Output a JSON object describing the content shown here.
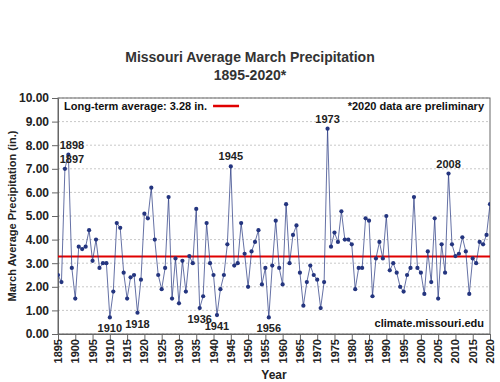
{
  "chart_data": {
    "type": "line",
    "title": "Missouri Average March Precipitation",
    "subtitle": "1895-2020*",
    "x_label": "Year",
    "y_label": "March Average  Precipitation  (in.)",
    "x": [
      1895,
      1896,
      1897,
      1898,
      1899,
      1900,
      1901,
      1902,
      1903,
      1904,
      1905,
      1906,
      1907,
      1908,
      1909,
      1910,
      1911,
      1912,
      1913,
      1914,
      1915,
      1916,
      1917,
      1918,
      1919,
      1920,
      1921,
      1922,
      1923,
      1924,
      1925,
      1926,
      1927,
      1928,
      1929,
      1930,
      1931,
      1932,
      1933,
      1934,
      1935,
      1936,
      1937,
      1938,
      1939,
      1940,
      1941,
      1942,
      1943,
      1944,
      1945,
      1946,
      1947,
      1948,
      1949,
      1950,
      1951,
      1952,
      1953,
      1954,
      1955,
      1956,
      1957,
      1958,
      1959,
      1960,
      1961,
      1962,
      1963,
      1964,
      1965,
      1966,
      1967,
      1968,
      1969,
      1970,
      1971,
      1972,
      1973,
      1974,
      1975,
      1976,
      1977,
      1978,
      1979,
      1980,
      1981,
      1982,
      1983,
      1984,
      1985,
      1986,
      1987,
      1988,
      1989,
      1990,
      1991,
      1992,
      1993,
      1994,
      1995,
      1996,
      1997,
      1998,
      1999,
      2000,
      2001,
      2002,
      2003,
      2004,
      2005,
      2006,
      2007,
      2008,
      2009,
      2010,
      2011,
      2012,
      2013,
      2014,
      2015,
      2016,
      2017,
      2018,
      2019,
      2020
    ],
    "values": [
      2.5,
      2.2,
      7.0,
      7.6,
      2.8,
      1.5,
      3.7,
      3.6,
      3.7,
      4.4,
      3.1,
      4.0,
      2.8,
      3.0,
      3.0,
      0.7,
      1.8,
      4.7,
      4.5,
      2.6,
      1.5,
      2.4,
      2.5,
      0.9,
      2.3,
      5.1,
      4.9,
      6.2,
      4.0,
      2.5,
      1.9,
      2.8,
      5.8,
      1.5,
      3.2,
      1.3,
      3.1,
      1.8,
      3.3,
      3.0,
      5.3,
      1.1,
      1.6,
      4.7,
      3.0,
      2.5,
      0.8,
      1.9,
      2.5,
      3.8,
      7.1,
      2.9,
      3.0,
      4.7,
      3.4,
      2.0,
      3.5,
      3.9,
      4.4,
      2.1,
      2.8,
      0.7,
      2.9,
      4.8,
      2.8,
      2.1,
      5.5,
      3.0,
      4.2,
      4.6,
      2.6,
      1.2,
      2.2,
      2.9,
      2.5,
      2.3,
      1.1,
      2.2,
      8.7,
      3.7,
      4.3,
      3.9,
      5.2,
      4.0,
      4.0,
      3.8,
      1.9,
      2.8,
      2.8,
      4.9,
      4.8,
      1.6,
      3.2,
      3.9,
      3.2,
      5.0,
      2.7,
      3.0,
      2.6,
      2.0,
      1.8,
      2.5,
      2.8,
      5.8,
      2.8,
      2.6,
      1.7,
      3.5,
      2.2,
      4.9,
      1.5,
      3.8,
      2.6,
      6.8,
      3.8,
      3.3,
      3.4,
      4.1,
      3.5,
      1.7,
      3.2,
      3.0,
      3.9,
      3.8,
      4.2,
      5.5
    ],
    "color": "#24357f",
    "marker": "circle",
    "line_style": "solid",
    "grid": true,
    "xlim": [
      1895,
      2020
    ],
    "xticks": [
      1895,
      1900,
      1905,
      1910,
      1915,
      1920,
      1925,
      1930,
      1935,
      1940,
      1945,
      1950,
      1955,
      1960,
      1965,
      1970,
      1975,
      1980,
      1985,
      1990,
      1995,
      2000,
      2005,
      2010,
      2015,
      2020
    ],
    "ylim": [
      0,
      10
    ],
    "yticks": [
      {
        "value": 0,
        "label": "0.00"
      },
      {
        "value": 1,
        "label": "1.00"
      },
      {
        "value": 2,
        "label": "2.00"
      },
      {
        "value": 3,
        "label": "3.00"
      },
      {
        "value": 4,
        "label": "4.00"
      },
      {
        "value": 5,
        "label": "5.00"
      },
      {
        "value": 6,
        "label": "6.00"
      },
      {
        "value": 7,
        "label": "7.00"
      },
      {
        "value": 8,
        "label": "8.00"
      },
      {
        "value": 9,
        "label": "9.00"
      },
      {
        "value": 10,
        "label": "10.00"
      }
    ],
    "reference_line": {
      "value": 3.28,
      "label": "Long-term average: 3.28 in.",
      "color": "#e00000"
    },
    "annotations": [
      {
        "text": "1897",
        "x": 1897
      },
      {
        "text": "1898",
        "x": 1898
      },
      {
        "text": "1910",
        "x": 1910
      },
      {
        "text": "1918",
        "x": 1918
      },
      {
        "text": "1936",
        "x": 1936
      },
      {
        "text": "1941",
        "x": 1941
      },
      {
        "text": "1945",
        "x": 1945
      },
      {
        "text": "1956",
        "x": 1956
      },
      {
        "text": "1973",
        "x": 1973
      },
      {
        "text": "2008",
        "x": 2008
      }
    ],
    "notes": [
      "*2020 data are preliminary",
      "climate.missouri.edu"
    ]
  }
}
